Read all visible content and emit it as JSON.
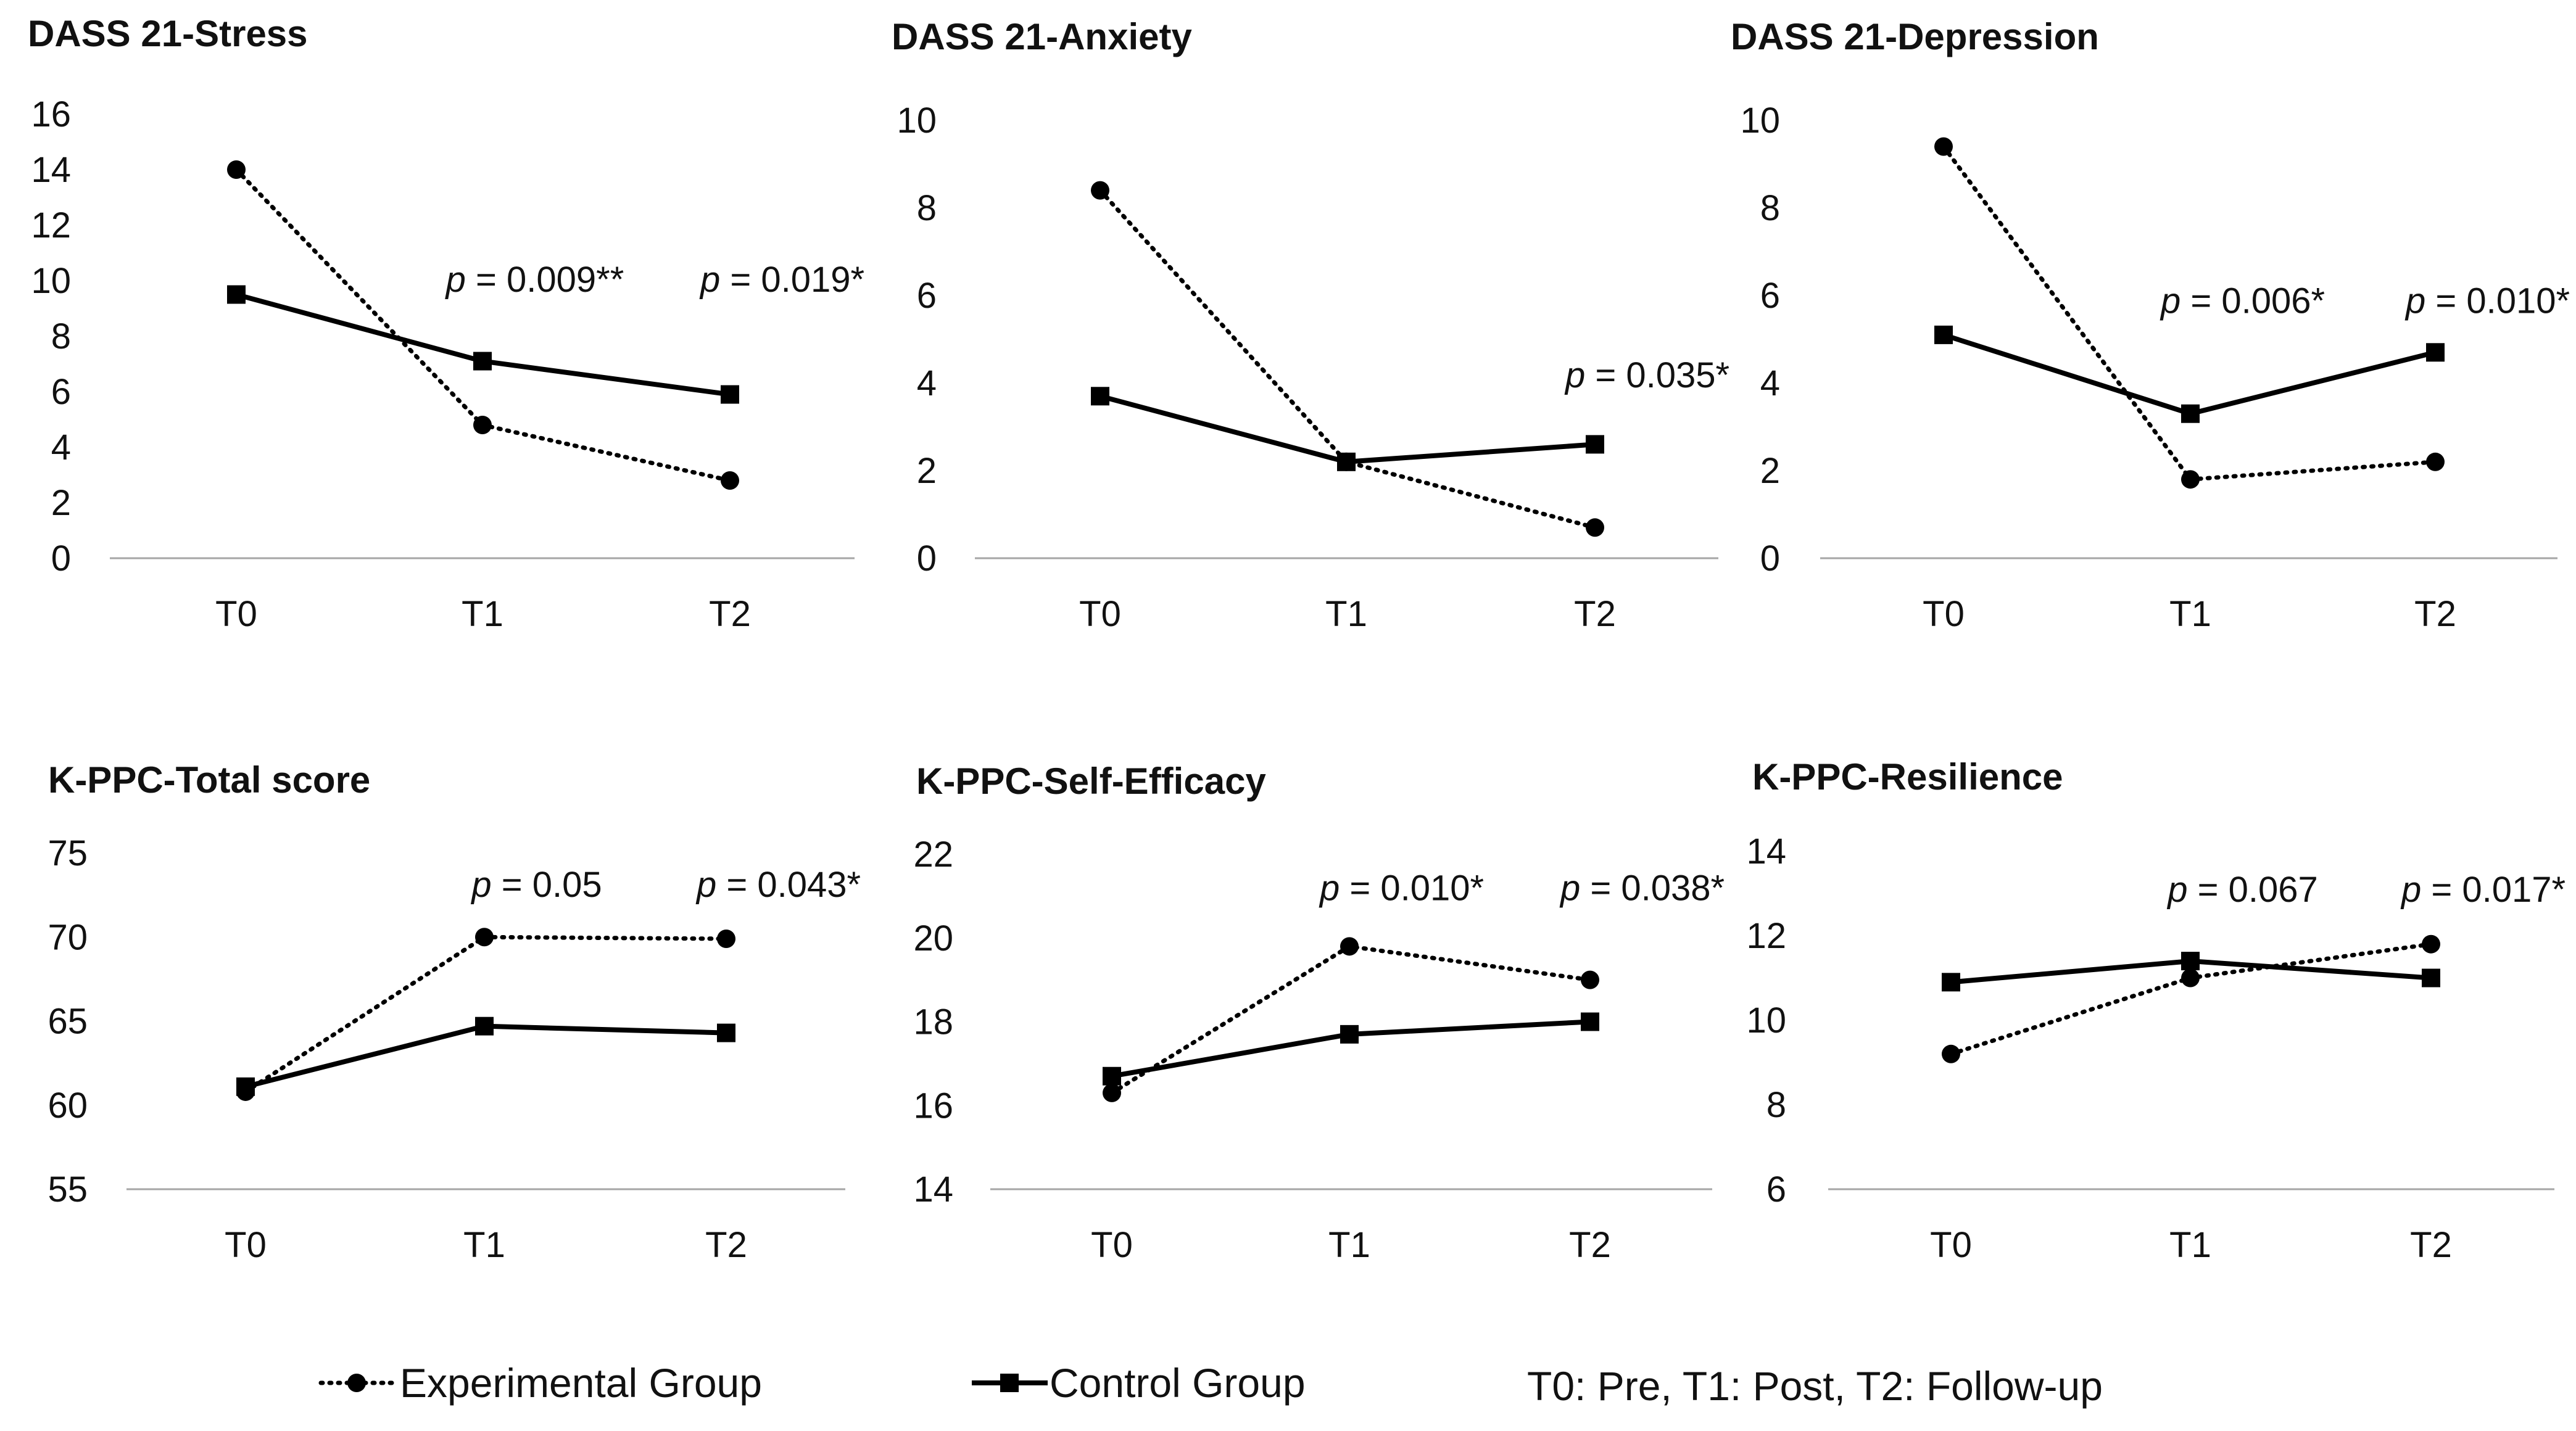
{
  "chart_data": [
    {
      "type": "line",
      "title": "DASS 21-Stress",
      "categories": [
        "T0",
        "T1",
        "T2"
      ],
      "ylim": [
        0,
        16
      ],
      "yticks": [
        0,
        2,
        4,
        6,
        8,
        10,
        12,
        14,
        16
      ],
      "series": [
        {
          "name": "Experimental Group",
          "values": [
            14.0,
            4.8,
            2.8
          ]
        },
        {
          "name": "Control Group",
          "values": [
            9.5,
            7.1,
            5.9
          ]
        }
      ],
      "annotations": [
        {
          "category": "T1",
          "at": 9.6,
          "p": "p",
          "rest": " = 0.009**"
        },
        {
          "category": "T2",
          "at": 9.6,
          "p": "p",
          "rest": " = 0.019*"
        }
      ]
    },
    {
      "type": "line",
      "title": "DASS 21-Anxiety",
      "categories": [
        "T0",
        "T1",
        "T2"
      ],
      "ylim": [
        0,
        10
      ],
      "yticks": [
        0,
        2,
        4,
        6,
        8,
        10
      ],
      "series": [
        {
          "name": "Experimental Group",
          "values": [
            8.4,
            2.2,
            0.7
          ]
        },
        {
          "name": "Control Group",
          "values": [
            3.7,
            2.2,
            2.6
          ]
        }
      ],
      "annotations": [
        {
          "category": "T2",
          "at": 3.9,
          "p": "p",
          "rest": " = 0.035*"
        }
      ]
    },
    {
      "type": "line",
      "title": "DASS 21-Depression",
      "categories": [
        "T0",
        "T1",
        "T2"
      ],
      "ylim": [
        0,
        10
      ],
      "yticks": [
        0,
        2,
        4,
        6,
        8,
        10
      ],
      "series": [
        {
          "name": "Experimental Group",
          "values": [
            9.4,
            1.8,
            2.2
          ]
        },
        {
          "name": "Control Group",
          "values": [
            5.1,
            3.3,
            4.7
          ]
        }
      ],
      "annotations": [
        {
          "category": "T1",
          "at": 5.6,
          "p": "p",
          "rest": " = 0.006*"
        },
        {
          "category": "T2",
          "at": 5.6,
          "p": "p",
          "rest": " = 0.010*"
        }
      ]
    },
    {
      "type": "line",
      "title": "K-PPC-Total score",
      "categories": [
        "T0",
        "T1",
        "T2"
      ],
      "ylim": [
        55,
        75
      ],
      "yticks": [
        55,
        60,
        65,
        70,
        75
      ],
      "series": [
        {
          "name": "Experimental Group",
          "values": [
            60.8,
            70.0,
            69.9
          ]
        },
        {
          "name": "Control Group",
          "values": [
            61.1,
            64.7,
            64.3
          ]
        }
      ],
      "annotations": [
        {
          "category": "T1",
          "at": 72.4,
          "p": "p",
          "rest": " = 0.05"
        },
        {
          "category": "T2",
          "at": 72.4,
          "p": "p",
          "rest": " = 0.043*"
        }
      ]
    },
    {
      "type": "line",
      "title": "K-PPC-Self-Efficacy",
      "categories": [
        "T0",
        "T1",
        "T2"
      ],
      "ylim": [
        14,
        22
      ],
      "yticks": [
        14,
        16,
        18,
        20,
        22
      ],
      "series": [
        {
          "name": "Experimental Group",
          "values": [
            16.3,
            19.8,
            19.0
          ]
        },
        {
          "name": "Control Group",
          "values": [
            16.7,
            17.7,
            18.0
          ]
        }
      ],
      "annotations": [
        {
          "category": "T1",
          "at": 20.9,
          "p": "p",
          "rest": " = 0.010*"
        },
        {
          "category": "T2",
          "at": 20.9,
          "p": "p",
          "rest": " = 0.038*"
        }
      ]
    },
    {
      "type": "line",
      "title": "K-PPC-Resilience",
      "categories": [
        "T0",
        "T1",
        "T2"
      ],
      "ylim": [
        6,
        14
      ],
      "yticks": [
        6,
        8,
        10,
        12,
        14
      ],
      "series": [
        {
          "name": "Experimental Group",
          "values": [
            9.2,
            11.0,
            11.8
          ]
        },
        {
          "name": "Control Group",
          "values": [
            10.9,
            11.4,
            11.0
          ]
        }
      ],
      "annotations": [
        {
          "category": "T1",
          "at": 12.8,
          "p": "p",
          "rest": " = 0.067"
        },
        {
          "category": "T2",
          "at": 12.8,
          "p": "p",
          "rest": " = 0.017*"
        }
      ]
    }
  ],
  "legend": {
    "experimental": "Experimental Group",
    "control": "Control Group",
    "note": "T0: Pre, T1: Post, T2: Follow-up"
  }
}
